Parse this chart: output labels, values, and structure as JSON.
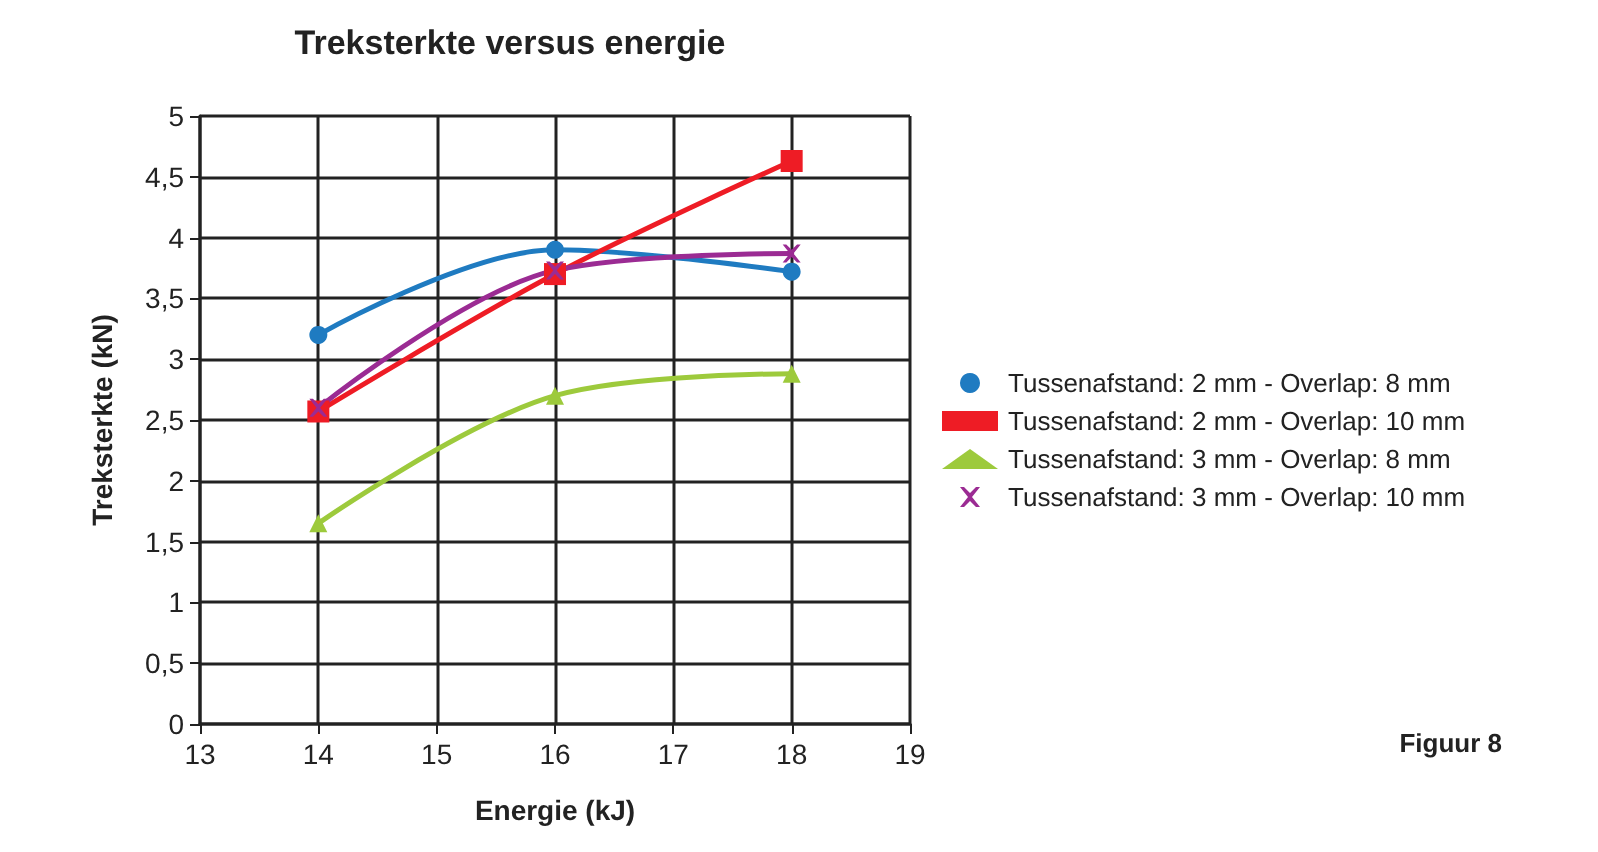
{
  "chart_data": {
    "type": "line",
    "title": "Treksterkte versus energie",
    "xlabel": "Energie (kJ)",
    "ylabel": "Treksterkte (kN)",
    "x": [
      14,
      16,
      18
    ],
    "series": [
      {
        "name": "Tussenafstand: 2 mm - Overlap: 8 mm",
        "color": "#1f7bc1",
        "marker": "circle",
        "values": [
          3.2,
          3.9,
          3.72
        ]
      },
      {
        "name": "Tussenafstand: 2 mm - Overlap: 10 mm",
        "color": "#ee1c25",
        "marker": "square",
        "values": [
          2.57,
          3.7,
          4.63
        ]
      },
      {
        "name": "Tussenafstand: 3 mm - Overlap: 8 mm",
        "color": "#9dca3c",
        "marker": "triangle",
        "values": [
          1.65,
          2.7,
          2.88
        ]
      },
      {
        "name": "Tussenafstand: 3 mm - Overlap: 10 mm",
        "color": "#9b2b93",
        "marker": "cross",
        "values": [
          2.6,
          3.73,
          3.87
        ]
      }
    ],
    "xlim": [
      13,
      19
    ],
    "xticks": [
      13,
      14,
      15,
      16,
      17,
      18,
      19
    ],
    "ylim": [
      0,
      5
    ],
    "yticks": [
      0,
      {
        "value": 0.5,
        "label": "0,5"
      },
      1,
      {
        "value": 1.5,
        "label": "1,5"
      },
      2,
      {
        "value": 2.5,
        "label": "2,5"
      },
      3,
      {
        "value": 3.5,
        "label": "3,5"
      },
      4,
      {
        "value": 4.5,
        "label": "4,5"
      },
      5
    ],
    "grid": true,
    "legend": "right",
    "line_style": "solid",
    "annotations": [
      "Figuur 8"
    ]
  }
}
